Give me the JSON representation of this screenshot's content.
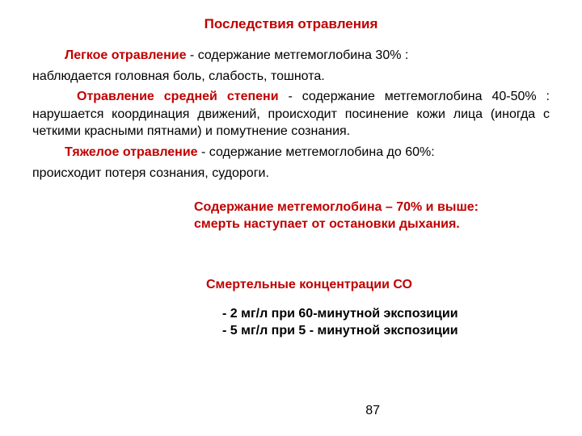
{
  "title": "Последствия отравления",
  "para1": {
    "label": "Легкое отравление",
    "rest1": " -  содержание метгемоглобина  30% :",
    "line2": "наблюдается головная боль, слабость, тошнота."
  },
  "para2": {
    "label": "Отравление средней степени",
    "rest": " - содержание метгемоглобина 40-50% : нарушается координация движений, происходит посинение кожи лица (иногда с четкими красными пятнами) и помутнение сознания."
  },
  "para3": {
    "label": "Тяжелое отравление",
    "rest1": " - содержание метгемоглобина до 60%:",
    "line2": "происходит потеря сознания, судороги."
  },
  "redBlock": {
    "line1": "Содержание метгемоглобина – 70% и выше:",
    "line2": "смерть наступает от остановки дыхания."
  },
  "subTitle": "Смертельные концентрации СО",
  "list": {
    "item1": "- 2 мг/л при 60-минутной экспозиции",
    "item2": "- 5 мг/л при 5 - минутной экспозиции"
  },
  "pageNumber": "87"
}
